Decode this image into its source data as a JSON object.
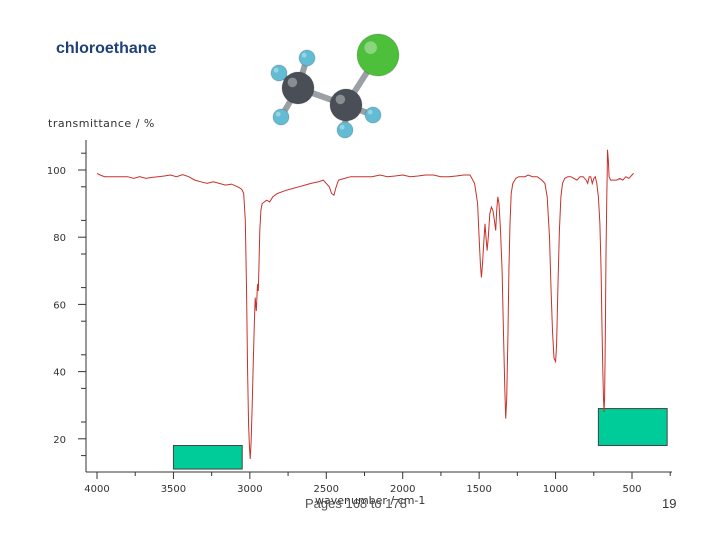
{
  "slide": {
    "title": "chloroethane",
    "footer": "Pages 168 to 178",
    "page_number": "19"
  },
  "molecule": {
    "name": "chloroethane",
    "colors": {
      "carbon": "#4a4f57",
      "hydrogen": "#62bcd3",
      "chlorine": "#4dbf3a",
      "bond": "#9aa0a6"
    }
  },
  "highlight_color": "#00cc99",
  "chart_data": {
    "type": "line",
    "title": "",
    "xlabel": "wavenumber / cm-1",
    "ylabel": "transmittance / %",
    "xlim": [
      4000,
      250
    ],
    "ylim": [
      10,
      105
    ],
    "x_ticks": [
      4000,
      3500,
      3000,
      2500,
      2000,
      1500,
      1000,
      500
    ],
    "y_ticks": [
      20,
      40,
      60,
      80,
      100
    ],
    "line_color": "#c8312a",
    "grid": false,
    "series": [
      {
        "name": "",
        "points": [
          [
            4000,
            99
          ],
          [
            3980,
            98.5
          ],
          [
            3950,
            98
          ],
          [
            3900,
            98
          ],
          [
            3850,
            98
          ],
          [
            3800,
            98
          ],
          [
            3760,
            97.5
          ],
          [
            3720,
            98
          ],
          [
            3680,
            97.5
          ],
          [
            3640,
            97.8
          ],
          [
            3600,
            98
          ],
          [
            3560,
            98.2
          ],
          [
            3520,
            98.5
          ],
          [
            3480,
            98
          ],
          [
            3440,
            98.6
          ],
          [
            3400,
            98
          ],
          [
            3360,
            97
          ],
          [
            3320,
            96.5
          ],
          [
            3280,
            96
          ],
          [
            3240,
            96.5
          ],
          [
            3200,
            96
          ],
          [
            3160,
            95.5
          ],
          [
            3120,
            95.8
          ],
          [
            3080,
            95
          ],
          [
            3060,
            94.5
          ],
          [
            3050,
            94
          ],
          [
            3040,
            93
          ],
          [
            3030,
            85
          ],
          [
            3022,
            65
          ],
          [
            3015,
            40
          ],
          [
            3008,
            24
          ],
          [
            3003,
            18
          ],
          [
            2998,
            14
          ],
          [
            2992,
            19
          ],
          [
            2985,
            30
          ],
          [
            2978,
            42
          ],
          [
            2970,
            55
          ],
          [
            2965,
            62
          ],
          [
            2958,
            58
          ],
          [
            2950,
            66
          ],
          [
            2945,
            64
          ],
          [
            2940,
            72
          ],
          [
            2935,
            82
          ],
          [
            2928,
            88
          ],
          [
            2920,
            90
          ],
          [
            2905,
            90.5
          ],
          [
            2890,
            91
          ],
          [
            2870,
            90.5
          ],
          [
            2850,
            92
          ],
          [
            2820,
            93
          ],
          [
            2790,
            93.5
          ],
          [
            2760,
            94
          ],
          [
            2720,
            94.5
          ],
          [
            2680,
            95
          ],
          [
            2640,
            95.5
          ],
          [
            2600,
            96
          ],
          [
            2550,
            96.5
          ],
          [
            2520,
            97
          ],
          [
            2480,
            95
          ],
          [
            2465,
            93
          ],
          [
            2450,
            92.5
          ],
          [
            2435,
            95
          ],
          [
            2420,
            97
          ],
          [
            2380,
            97.5
          ],
          [
            2340,
            98
          ],
          [
            2300,
            98
          ],
          [
            2260,
            98
          ],
          [
            2200,
            98
          ],
          [
            2150,
            98.5
          ],
          [
            2100,
            98
          ],
          [
            2050,
            98.2
          ],
          [
            2000,
            98.5
          ],
          [
            1950,
            98
          ],
          [
            1900,
            98.2
          ],
          [
            1850,
            98.5
          ],
          [
            1800,
            98.5
          ],
          [
            1750,
            98
          ],
          [
            1700,
            98
          ],
          [
            1650,
            98.2
          ],
          [
            1600,
            98.5
          ],
          [
            1560,
            98.5
          ],
          [
            1530,
            96
          ],
          [
            1510,
            90
          ],
          [
            1500,
            80
          ],
          [
            1492,
            72
          ],
          [
            1485,
            68
          ],
          [
            1478,
            72
          ],
          [
            1470,
            78
          ],
          [
            1462,
            84
          ],
          [
            1455,
            80
          ],
          [
            1448,
            76
          ],
          [
            1440,
            80
          ],
          [
            1430,
            87
          ],
          [
            1420,
            89
          ],
          [
            1410,
            88
          ],
          [
            1400,
            85
          ],
          [
            1392,
            82
          ],
          [
            1385,
            88
          ],
          [
            1378,
            92
          ],
          [
            1370,
            90
          ],
          [
            1360,
            82
          ],
          [
            1350,
            70
          ],
          [
            1340,
            50
          ],
          [
            1332,
            35
          ],
          [
            1326,
            26
          ],
          [
            1320,
            32
          ],
          [
            1312,
            50
          ],
          [
            1305,
            70
          ],
          [
            1298,
            84
          ],
          [
            1290,
            93
          ],
          [
            1280,
            96
          ],
          [
            1260,
            97.5
          ],
          [
            1240,
            98
          ],
          [
            1220,
            98
          ],
          [
            1200,
            98
          ],
          [
            1180,
            98.5
          ],
          [
            1150,
            98
          ],
          [
            1120,
            98
          ],
          [
            1090,
            97
          ],
          [
            1070,
            96
          ],
          [
            1055,
            92
          ],
          [
            1040,
            80
          ],
          [
            1030,
            65
          ],
          [
            1020,
            52
          ],
          [
            1010,
            44
          ],
          [
            1000,
            43
          ],
          [
            993,
            48
          ],
          [
            985,
            65
          ],
          [
            975,
            82
          ],
          [
            965,
            92
          ],
          [
            955,
            96
          ],
          [
            940,
            97.5
          ],
          [
            920,
            98
          ],
          [
            900,
            98
          ],
          [
            880,
            97.5
          ],
          [
            860,
            97
          ],
          [
            840,
            98
          ],
          [
            820,
            98
          ],
          [
            800,
            97
          ],
          [
            790,
            96
          ],
          [
            780,
            98
          ],
          [
            770,
            98
          ],
          [
            760,
            96
          ],
          [
            750,
            97.5
          ],
          [
            740,
            98
          ],
          [
            730,
            96
          ],
          [
            720,
            92
          ],
          [
            710,
            84
          ],
          [
            702,
            70
          ],
          [
            697,
            55
          ],
          [
            692,
            42
          ],
          [
            687,
            33
          ],
          [
            683,
            28
          ],
          [
            679,
            32
          ],
          [
            675,
            50
          ],
          [
            670,
            75
          ],
          [
            665,
            92
          ],
          [
            662,
            99
          ],
          [
            660,
            106
          ],
          [
            655,
            103
          ],
          [
            650,
            98
          ],
          [
            640,
            97
          ],
          [
            620,
            97
          ],
          [
            600,
            97
          ],
          [
            580,
            97.5
          ],
          [
            560,
            97
          ],
          [
            540,
            98
          ],
          [
            520,
            97.5
          ],
          [
            500,
            98.5
          ],
          [
            490,
            99
          ]
        ]
      }
    ],
    "annotations": [
      {
        "type": "box",
        "label": "",
        "x_range": [
          3500,
          3050
        ],
        "y_range": [
          11,
          18
        ]
      },
      {
        "type": "box",
        "label": "",
        "x_range": [
          720,
          270
        ],
        "y_range": [
          18,
          29
        ]
      }
    ]
  }
}
